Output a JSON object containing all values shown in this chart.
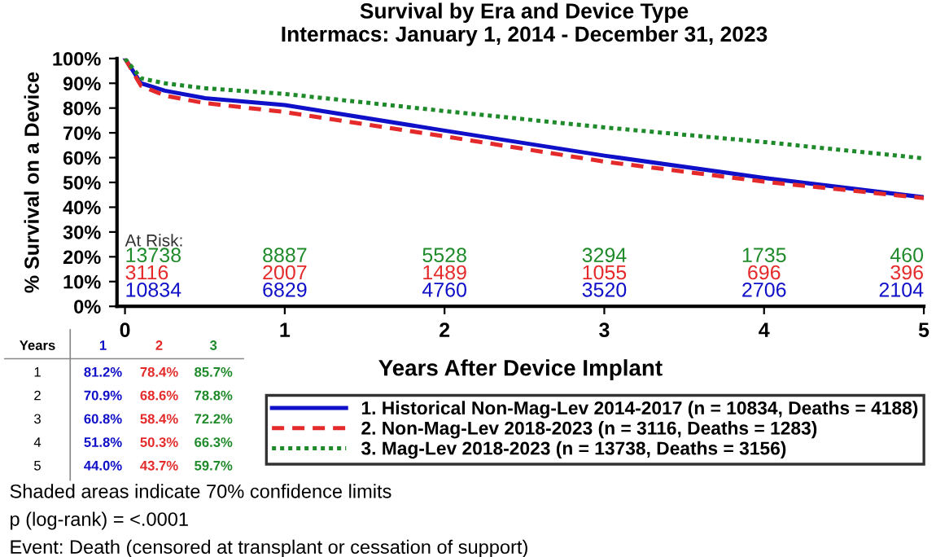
{
  "chart_data": {
    "type": "line",
    "title": "Survival by Era and Device Type\nIntermacs: January 1, 2014 - December 31, 2023",
    "xlabel": "Years After Device Implant",
    "ylabel": "% Survival on a Device",
    "x": [
      0,
      0.1,
      0.25,
      0.5,
      1,
      2,
      3,
      4,
      5
    ],
    "series": [
      {
        "name": "1. Historical Non-Mag-Lev 2014-2017 (n = 10834, Deaths = 4188)",
        "color": "#1010c8",
        "line_style": "solid",
        "values": [
          100,
          90,
          87,
          84,
          81.2,
          70.9,
          60.8,
          51.8,
          44.0
        ]
      },
      {
        "name": "2. Non-Mag-Lev 2018-2023 (n = 3116, Deaths = 1283)",
        "color": "#e42a2a",
        "line_style": "dashed",
        "values": [
          100,
          89,
          85,
          82,
          78.4,
          68.6,
          58.4,
          50.3,
          43.7
        ]
      },
      {
        "name": "3. Mag-Lev 2018-2023 (n = 13738, Deaths = 3156)",
        "color": "#1f8a2a",
        "line_style": "dotted",
        "values": [
          100,
          92,
          90,
          88,
          85.7,
          78.8,
          72.2,
          66.3,
          59.7
        ]
      }
    ],
    "xlim": [
      -0.05,
      5
    ],
    "xticks": [
      0,
      1,
      2,
      3,
      4,
      5
    ],
    "ylim": [
      0,
      100
    ],
    "yticks": [
      {
        "value": 0,
        "label": "0%"
      },
      {
        "value": 10,
        "label": "10%"
      },
      {
        "value": 20,
        "label": "20%"
      },
      {
        "value": 30,
        "label": "30%"
      },
      {
        "value": 40,
        "label": "40%"
      },
      {
        "value": 50,
        "label": "50%"
      },
      {
        "value": 60,
        "label": "60%"
      },
      {
        "value": 70,
        "label": "70%"
      },
      {
        "value": 80,
        "label": "80%"
      },
      {
        "value": 90,
        "label": "90%"
      },
      {
        "value": 100,
        "label": "100%"
      }
    ],
    "grid": false,
    "legend": "bottom right",
    "marker": "none",
    "annotations": [
      "At Risk:",
      "13738",
      "8887",
      "5528",
      "3294",
      "1735",
      "460",
      "3116",
      "2007",
      "1489",
      "1055",
      "696",
      "396",
      "10834",
      "6829",
      "4760",
      "3520",
      "2706",
      "2104",
      "Years",
      "1",
      "2",
      "3",
      "1",
      "81.2%",
      "78.4%",
      "85.7%",
      "2",
      "70.9%",
      "68.6%",
      "78.8%",
      "3",
      "60.8%",
      "58.4%",
      "72.2%",
      "4",
      "51.8%",
      "50.3%",
      "66.3%",
      "5",
      "44.0%",
      "43.7%",
      "59.7%",
      "Shaded areas indicate 70% confidence limits",
      "p (log-rank) = <.0001",
      "Event: Death (censored at transplant or cessation of support)"
    ]
  }
}
